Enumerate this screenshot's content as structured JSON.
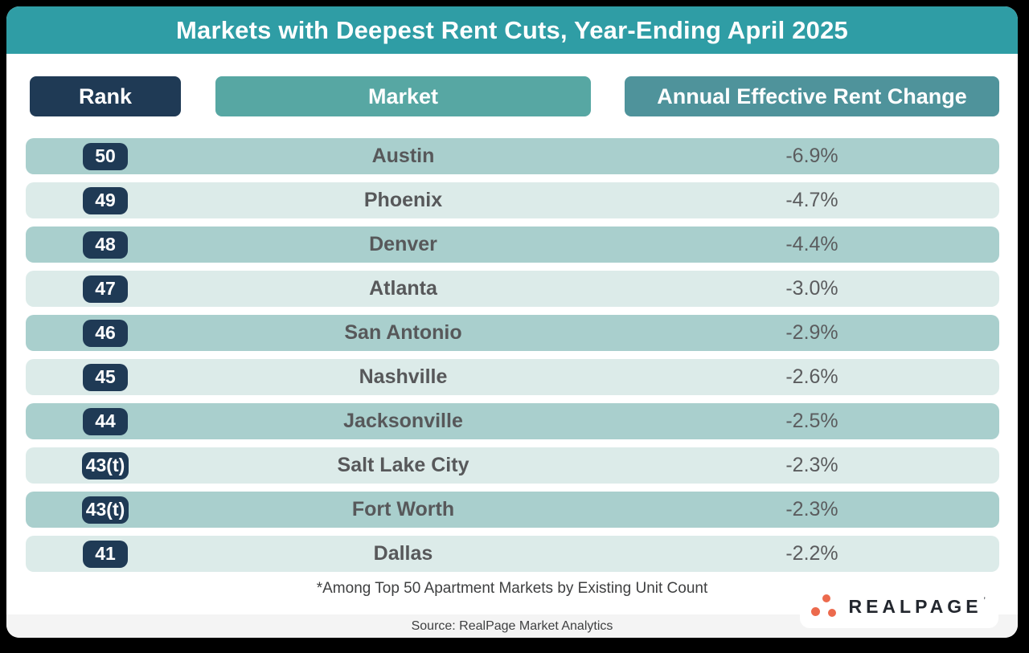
{
  "chart_data": {
    "type": "table",
    "title": "Markets with Deepest Rent Cuts, Year-Ending April 2025",
    "columns": [
      "Rank",
      "Market",
      "Annual Effective Rent Change"
    ],
    "rows": [
      [
        "50",
        "Austin",
        "-6.9%"
      ],
      [
        "49",
        "Phoenix",
        "-4.7%"
      ],
      [
        "48",
        "Denver",
        "-4.4%"
      ],
      [
        "47",
        "Atlanta",
        "-3.0%"
      ],
      [
        "46",
        "San Antonio",
        "-2.9%"
      ],
      [
        "45",
        "Nashville",
        "-2.6%"
      ],
      [
        "44",
        "Jacksonville",
        "-2.5%"
      ],
      [
        "43(t)",
        "Salt Lake City",
        "-2.3%"
      ],
      [
        "43(t)",
        "Fort Worth",
        "-2.3%"
      ],
      [
        "41",
        "Dallas",
        "-2.2%"
      ]
    ],
    "footnote": "*Among Top 50 Apartment Markets by Existing Unit Count",
    "source": "Source: RealPage Market Analytics",
    "legend_position": "none",
    "grid": false
  },
  "logo": {
    "text": "REALPAGE",
    "trademark": "’"
  },
  "colors": {
    "banner": "#2F9DA5",
    "rank_header": "#1F3A55",
    "market_header": "#57A7A3",
    "change_header": "#4F939B",
    "row_dark": "#A9CFCD",
    "row_light": "#DCEBE9",
    "rank_badge": "#1F3A55",
    "logo_dots": "#EC6A4D",
    "source_band": "#F4F4F4"
  }
}
